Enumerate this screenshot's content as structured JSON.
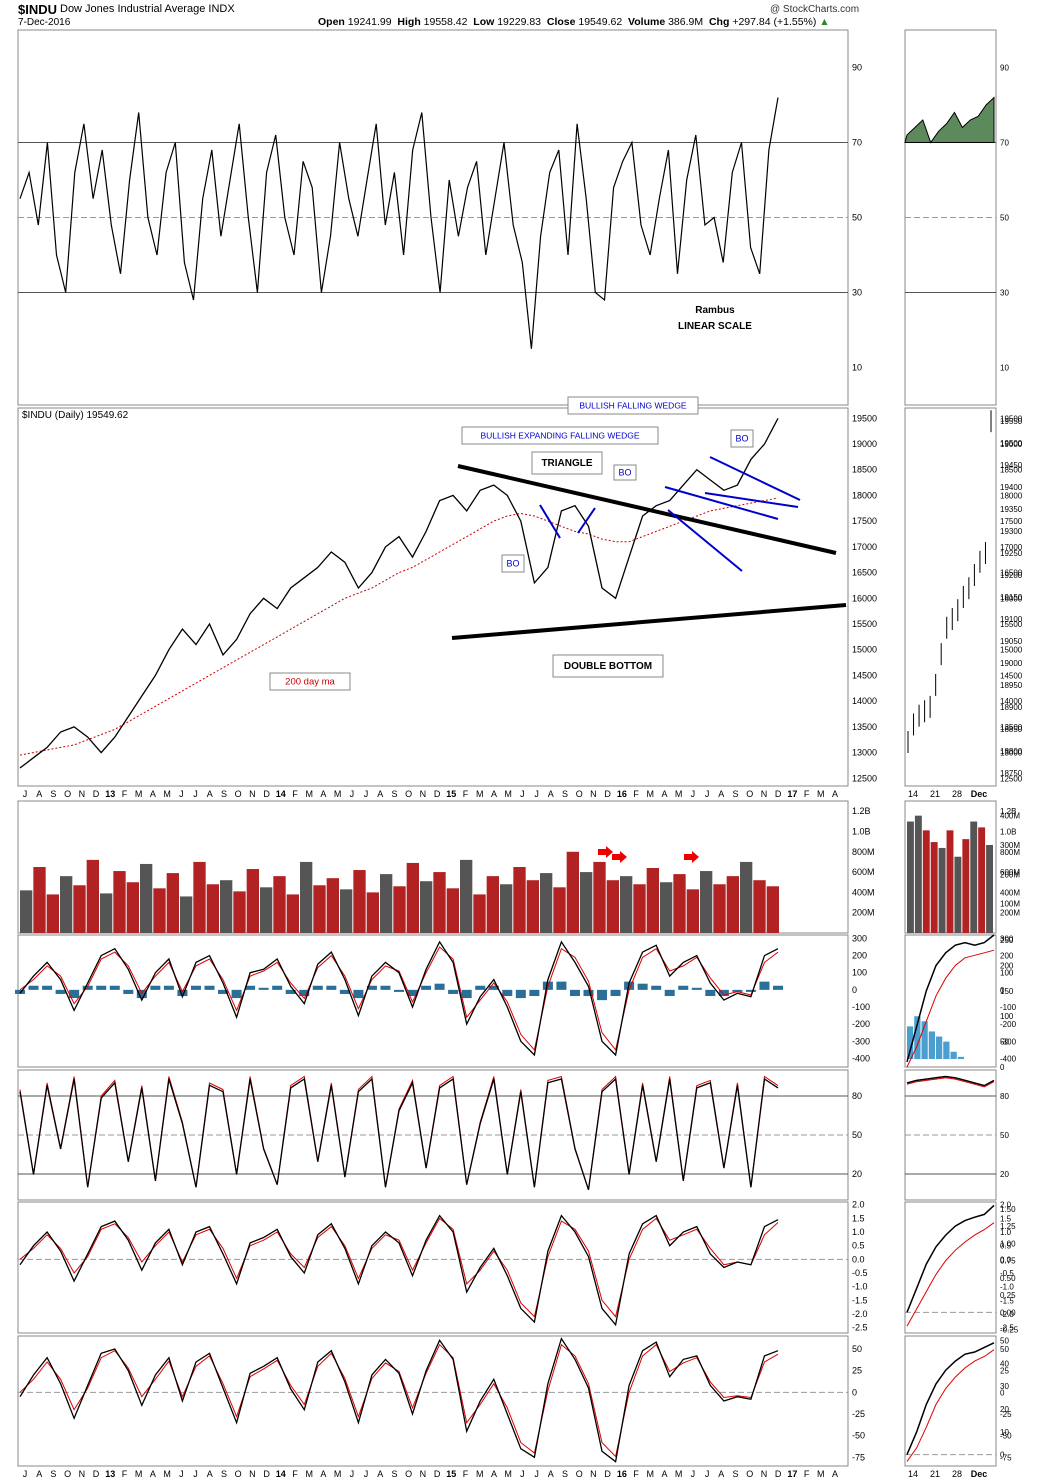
{
  "header": {
    "symbol": "$INDU",
    "name": "Dow Jones Industrial Average",
    "exchange": "INDX",
    "date": "7-Dec-2016",
    "open_label": "Open",
    "open": "19241.99",
    "high_label": "High",
    "high": "19558.42",
    "low_label": "Low",
    "low": "19229.83",
    "close_label": "Close",
    "close": "19549.62",
    "volume_label": "Volume",
    "volume": "386.9M",
    "chg_label": "Chg",
    "chg": "+297.84 (+1.55%)",
    "watermark": "@ StockCharts.com"
  },
  "colors": {
    "rsi_fill": "#5c8a5c",
    "price_line": "#000000",
    "ma_line": "#cc0000",
    "volume_red": "#b22222",
    "volume_gray": "#555555",
    "macd_hist": "#2a6f97",
    "annotation_blue": "#0000cc",
    "signal_line": "#dd0000"
  },
  "chart_data": [
    {
      "type": "line",
      "panel": "rsi",
      "y_ticks": [
        90,
        70,
        50,
        30,
        10
      ],
      "ylim": [
        0,
        100
      ],
      "reference_lines": [
        70,
        50,
        30
      ],
      "series": [
        {
          "values": [
            55,
            62,
            48,
            70,
            40,
            30,
            62,
            75,
            55,
            68,
            48,
            35,
            60,
            78,
            50,
            40,
            62,
            70,
            38,
            28,
            55,
            68,
            45,
            60,
            75,
            50,
            30,
            62,
            72,
            50,
            40,
            65,
            58,
            30,
            45,
            70,
            55,
            45,
            60,
            75,
            48,
            62,
            40,
            68,
            78,
            50,
            30,
            60,
            45,
            58,
            65,
            40,
            55,
            70,
            48,
            38,
            15,
            45,
            62,
            68,
            40,
            75,
            55,
            30,
            28,
            58,
            65,
            70,
            48,
            40,
            55,
            68,
            35,
            60,
            72,
            48,
            50,
            38,
            62,
            70,
            42,
            35,
            68,
            82
          ]
        }
      ],
      "annotations": [
        "Rambus",
        "LINEAR SCALE"
      ]
    },
    {
      "type": "line",
      "panel": "price",
      "title": "$INDU (Daily) 19549.62",
      "y_ticks": [
        19500,
        19000,
        18500,
        18000,
        17500,
        17000,
        16500,
        16000,
        15500,
        15000,
        14500,
        14000,
        13500,
        13000,
        12500
      ],
      "ylim": [
        12350,
        19700
      ],
      "x_ticks": [
        "J",
        "A",
        "S",
        "O",
        "N",
        "D",
        "13",
        "F",
        "M",
        "A",
        "M",
        "J",
        "J",
        "A",
        "S",
        "O",
        "N",
        "D",
        "14",
        "F",
        "M",
        "A",
        "M",
        "J",
        "J",
        "A",
        "S",
        "O",
        "N",
        "D",
        "15",
        "F",
        "M",
        "A",
        "M",
        "J",
        "J",
        "A",
        "S",
        "O",
        "N",
        "D",
        "16",
        "F",
        "M",
        "A",
        "M",
        "J",
        "J",
        "A",
        "S",
        "O",
        "N",
        "D",
        "17",
        "F",
        "M",
        "A"
      ],
      "series": [
        {
          "name": "$INDU",
          "values": [
            12700,
            12900,
            13100,
            13400,
            13500,
            13300,
            13000,
            13300,
            13700,
            14100,
            14500,
            15000,
            15400,
            15100,
            15500,
            14900,
            15200,
            15700,
            16000,
            15800,
            16200,
            16400,
            16600,
            16900,
            16700,
            16200,
            16500,
            17000,
            17200,
            16800,
            17300,
            17900,
            18000,
            17700,
            18100,
            18200,
            18000,
            17500,
            16300,
            16600,
            17700,
            17800,
            17400,
            16200,
            16000,
            16800,
            17600,
            17800,
            17900,
            18200,
            18500,
            18300,
            18100,
            18200,
            18700,
            19000,
            19500
          ]
        },
        {
          "name": "200 day ma",
          "values": [
            12950,
            13000,
            13050,
            13100,
            13150,
            13250,
            13350,
            13450,
            13600,
            13750,
            13900,
            14050,
            14200,
            14350,
            14500,
            14650,
            14800,
            14950,
            15100,
            15250,
            15400,
            15550,
            15700,
            15850,
            16000,
            16100,
            16200,
            16350,
            16500,
            16600,
            16750,
            16900,
            17050,
            17200,
            17350,
            17500,
            17600,
            17650,
            17600,
            17500,
            17400,
            17300,
            17250,
            17150,
            17100,
            17100,
            17200,
            17300,
            17400,
            17500,
            17600,
            17700,
            17750,
            17800,
            17850,
            17900,
            17950
          ]
        }
      ],
      "annotations": [
        "BULLISH FALLING WEDGE",
        "BULLISH EXPANDING FALLING WEDGE",
        "TRIANGLE",
        "BO",
        "BO",
        "BO",
        "DOUBLE BOTTOM",
        "200 day ma"
      ]
    },
    {
      "type": "bar",
      "panel": "volume",
      "y_ticks": [
        "1.2B",
        "1.0B",
        "800M",
        "600M",
        "400M",
        "200M"
      ],
      "ylim": [
        0,
        1300
      ],
      "values": [
        420,
        650,
        380,
        560,
        470,
        720,
        390,
        610,
        500,
        680,
        440,
        590,
        360,
        700,
        480,
        520,
        410,
        630,
        450,
        560,
        380,
        700,
        470,
        540,
        430,
        620,
        400,
        580,
        460,
        690,
        510,
        600,
        440,
        720,
        380,
        560,
        480,
        650,
        520,
        590,
        450,
        800,
        600,
        700,
        520,
        560,
        480,
        640,
        500,
        580,
        430,
        610,
        480,
        560,
        700,
        520,
        460
      ]
    },
    {
      "type": "line",
      "panel": "macd",
      "y_ticks": [
        300,
        200,
        100,
        0,
        -100,
        -200,
        -300,
        -400
      ],
      "ylim": [
        -450,
        320
      ],
      "series": [
        {
          "name": "MACD",
          "values": [
            -20,
            80,
            160,
            60,
            -120,
            40,
            200,
            240,
            120,
            -60,
            100,
            180,
            -40,
            160,
            200,
            40,
            -160,
            100,
            120,
            180,
            20,
            -80,
            150,
            220,
            60,
            -150,
            80,
            160,
            100,
            -100,
            120,
            280,
            160,
            -200,
            -40,
            60,
            -100,
            -300,
            -380,
            60,
            280,
            160,
            20,
            -300,
            -380,
            40,
            220,
            260,
            80,
            160,
            200,
            40,
            -60,
            -20,
            -40,
            200,
            240
          ]
        },
        {
          "name": "Signal",
          "values": [
            0,
            60,
            140,
            80,
            -80,
            20,
            180,
            220,
            140,
            -20,
            80,
            160,
            -10,
            140,
            180,
            60,
            -120,
            80,
            110,
            160,
            40,
            -50,
            130,
            200,
            80,
            -110,
            60,
            140,
            110,
            -70,
            100,
            250,
            180,
            -160,
            -60,
            40,
            -70,
            -260,
            -350,
            20,
            240,
            190,
            50,
            -250,
            -350,
            0,
            190,
            240,
            110,
            140,
            190,
            70,
            -30,
            -10,
            -30,
            160,
            220
          ]
        }
      ]
    },
    {
      "type": "line",
      "panel": "stochastics",
      "y_ticks": [
        80,
        50,
        20
      ],
      "ylim": [
        0,
        100
      ],
      "reference_lines": [
        80,
        50,
        20
      ],
      "series": [
        {
          "name": "%K",
          "values": [
            85,
            20,
            90,
            40,
            95,
            10,
            80,
            92,
            30,
            88,
            15,
            95,
            60,
            10,
            90,
            85,
            20,
            95,
            40,
            12,
            88,
            95,
            30,
            90,
            18,
            85,
            95,
            10,
            70,
            92,
            25,
            88,
            95,
            12,
            60,
            95,
            20,
            85,
            10,
            92,
            95,
            40,
            8,
            85,
            95,
            20,
            90,
            30,
            95,
            15,
            88,
            92,
            25,
            90,
            10,
            95,
            88
          ]
        }
      ]
    },
    {
      "type": "line",
      "panel": "ppo",
      "y_ticks": [
        2.0,
        1.5,
        1.0,
        0.5,
        0.0,
        -0.5,
        -1.0,
        -1.5,
        -2.0,
        -2.5
      ],
      "ylim": [
        -2.7,
        2.1
      ],
      "series": [
        {
          "name": "PPO",
          "values": [
            -0.2,
            0.5,
            1.0,
            0.3,
            -0.8,
            0.2,
            1.2,
            1.4,
            0.7,
            -0.4,
            0.6,
            1.1,
            -0.2,
            1.0,
            1.2,
            0.2,
            -0.9,
            0.6,
            0.8,
            1.1,
            0.1,
            -0.5,
            0.9,
            1.3,
            0.4,
            -0.9,
            0.5,
            1.0,
            0.6,
            -0.6,
            0.7,
            1.6,
            1.0,
            -1.2,
            -0.3,
            0.4,
            -0.6,
            -1.8,
            -2.3,
            0.3,
            1.6,
            1.0,
            0.1,
            -1.8,
            -2.4,
            0.2,
            1.3,
            1.6,
            0.5,
            1.0,
            1.2,
            0.2,
            -0.3,
            -0.1,
            -0.2,
            1.2,
            1.45
          ]
        },
        {
          "name": "Signal",
          "values": [
            0.0,
            0.4,
            0.9,
            0.4,
            -0.5,
            0.1,
            1.1,
            1.3,
            0.8,
            -0.1,
            0.5,
            1.0,
            -0.1,
            0.9,
            1.1,
            0.4,
            -0.7,
            0.5,
            0.7,
            1.0,
            0.2,
            -0.3,
            0.8,
            1.2,
            0.5,
            -0.7,
            0.4,
            0.9,
            0.7,
            -0.4,
            0.6,
            1.5,
            1.1,
            -0.9,
            -0.4,
            0.3,
            -0.4,
            -1.6,
            -2.1,
            0.1,
            1.4,
            1.1,
            0.3,
            -1.5,
            -2.1,
            0.0,
            1.1,
            1.5,
            0.7,
            0.9,
            1.1,
            0.4,
            -0.2,
            -0.1,
            -0.2,
            0.9,
            1.35
          ]
        }
      ]
    },
    {
      "type": "line",
      "panel": "momentum",
      "y_ticks": [
        50,
        25,
        0,
        -25,
        -50,
        -75
      ],
      "ylim": [
        -85,
        65
      ],
      "series": [
        {
          "name": "Oscillator",
          "values": [
            -5,
            20,
            40,
            10,
            -30,
            8,
            45,
            50,
            25,
            -15,
            20,
            40,
            -10,
            35,
            45,
            5,
            -35,
            22,
            30,
            40,
            4,
            -20,
            35,
            48,
            12,
            -35,
            20,
            38,
            22,
            -25,
            25,
            60,
            38,
            -45,
            -10,
            15,
            -25,
            -65,
            -75,
            10,
            62,
            38,
            5,
            -68,
            -80,
            8,
            48,
            58,
            18,
            38,
            42,
            8,
            -10,
            -5,
            -8,
            42,
            48
          ]
        },
        {
          "name": "Signal",
          "values": [
            0,
            15,
            35,
            15,
            -20,
            5,
            40,
            48,
            28,
            -5,
            15,
            36,
            -5,
            30,
            42,
            10,
            -28,
            18,
            27,
            37,
            8,
            -14,
            30,
            45,
            16,
            -28,
            16,
            34,
            24,
            -18,
            22,
            55,
            40,
            -35,
            -14,
            10,
            -18,
            -58,
            -70,
            2,
            55,
            42,
            10,
            -58,
            -74,
            0,
            42,
            55,
            24,
            34,
            40,
            12,
            -6,
            -4,
            -6,
            35,
            44
          ]
        }
      ]
    },
    {
      "type": "line",
      "panel": "inset-price",
      "y_ticks": [
        19550,
        19500,
        19450,
        19400,
        19350,
        19300,
        19250,
        19200,
        19150,
        19100,
        19050,
        19000,
        18950,
        18900,
        18850,
        18800,
        18750
      ],
      "ylim": [
        18720,
        19580
      ],
      "x_ticks": [
        "14",
        "21",
        "28",
        "Dec"
      ],
      "series": [
        {
          "name": "$INDU",
          "values": [
            18820,
            18860,
            18880,
            18890,
            18900,
            18950,
            19020,
            19080,
            19100,
            19120,
            19150,
            19170,
            19200,
            19230,
            19250,
            19550
          ]
        }
      ]
    }
  ],
  "annotations": {
    "rambus": "Rambus",
    "linear": "LINEAR SCALE",
    "bfw": "BULLISH FALLING WEDGE",
    "befw": "BULLISH EXPANDING FALLING WEDGE",
    "triangle": "TRIANGLE",
    "bo": "BO",
    "double_bottom": "DOUBLE BOTTOM",
    "ma200": "200 day ma",
    "price_title": "$INDU (Daily) 19549.62"
  }
}
